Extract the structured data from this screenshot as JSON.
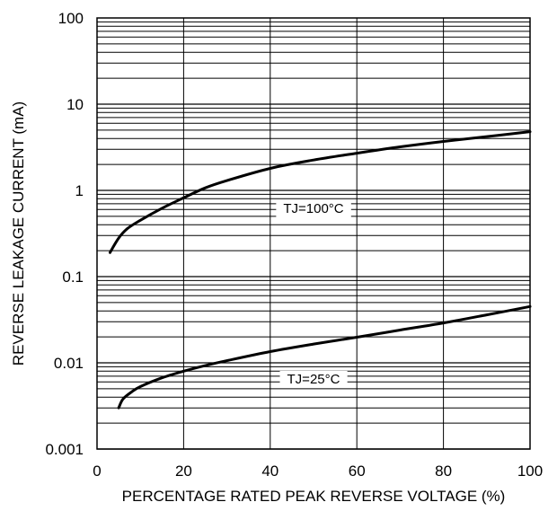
{
  "chart_data": {
    "type": "line",
    "title": "",
    "xlabel": "PERCENTAGE RATED PEAK REVERSE VOLTAGE (%)",
    "ylabel": "REVERSE LEAKAGE CURRENT (mA)",
    "xlim": [
      0,
      100
    ],
    "ylim": [
      0.001,
      100
    ],
    "yscale": "log",
    "grid": true,
    "x_ticks": [
      0,
      20,
      40,
      60,
      80,
      100
    ],
    "x_tick_labels": [
      "0",
      "20",
      "40",
      "60",
      "80",
      "100"
    ],
    "y_ticks": [
      0.001,
      0.01,
      0.1,
      1,
      10,
      100
    ],
    "y_tick_labels": [
      "0.001",
      "0.01",
      "0.1",
      "1",
      "10",
      "100"
    ],
    "series": [
      {
        "name": "TJ=100°C",
        "x": [
          3,
          5,
          7,
          10,
          15,
          20,
          25,
          30,
          40,
          50,
          60,
          70,
          80,
          90,
          100
        ],
        "y": [
          0.19,
          0.28,
          0.36,
          0.45,
          0.62,
          0.82,
          1.07,
          1.3,
          1.8,
          2.25,
          2.7,
          3.2,
          3.7,
          4.2,
          4.8
        ]
      },
      {
        "name": "TJ=25°C",
        "x": [
          5,
          6,
          8,
          10,
          15,
          20,
          25,
          30,
          40,
          50,
          60,
          70,
          80,
          90,
          100
        ],
        "y": [
          0.003,
          0.0038,
          0.0046,
          0.0053,
          0.0067,
          0.008,
          0.0093,
          0.0106,
          0.0135,
          0.0165,
          0.0198,
          0.024,
          0.029,
          0.036,
          0.045
        ]
      }
    ],
    "annotations": [
      {
        "text": "TJ=100°C",
        "x": 50,
        "y": 0.62
      },
      {
        "text": "TJ=25°C",
        "x": 50,
        "y": 0.0065
      }
    ]
  }
}
